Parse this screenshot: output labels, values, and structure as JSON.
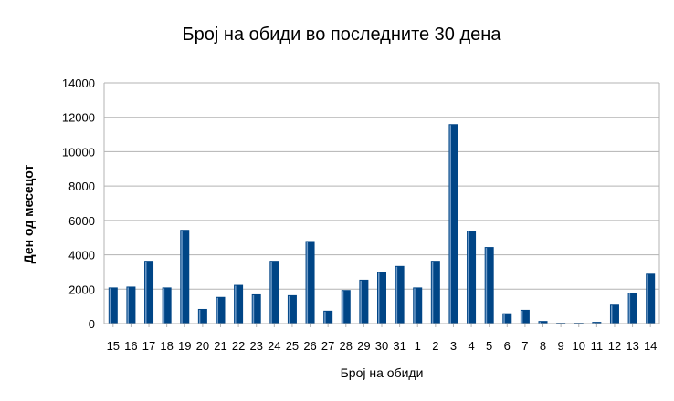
{
  "chart_data": {
    "type": "bar",
    "title": "Број на обиди во последните 30 дена",
    "xlabel": "Број на обиди",
    "ylabel": "Ден од месецот",
    "categories": [
      "15",
      "16",
      "17",
      "18",
      "19",
      "20",
      "21",
      "22",
      "23",
      "24",
      "25",
      "26",
      "27",
      "28",
      "29",
      "30",
      "31",
      "1",
      "2",
      "3",
      "4",
      "5",
      "6",
      "7",
      "8",
      "9",
      "10",
      "11",
      "12",
      "13",
      "14"
    ],
    "series": [
      {
        "values": [
          2100,
          2150,
          3650,
          2100,
          5450,
          850,
          1550,
          2250,
          1700,
          3650,
          1650,
          4800,
          750,
          1950,
          2550,
          3000,
          3350,
          2100,
          3650,
          11600,
          5400,
          4450,
          600,
          800,
          150,
          50,
          50,
          100,
          1100,
          1800,
          2900
        ],
        "color": "#004586"
      }
    ],
    "ylim": [
      0,
      14000
    ],
    "yticks": [
      0,
      2000,
      4000,
      6000,
      8000,
      10000,
      12000,
      14000
    ],
    "grid": true,
    "legend": "none"
  }
}
